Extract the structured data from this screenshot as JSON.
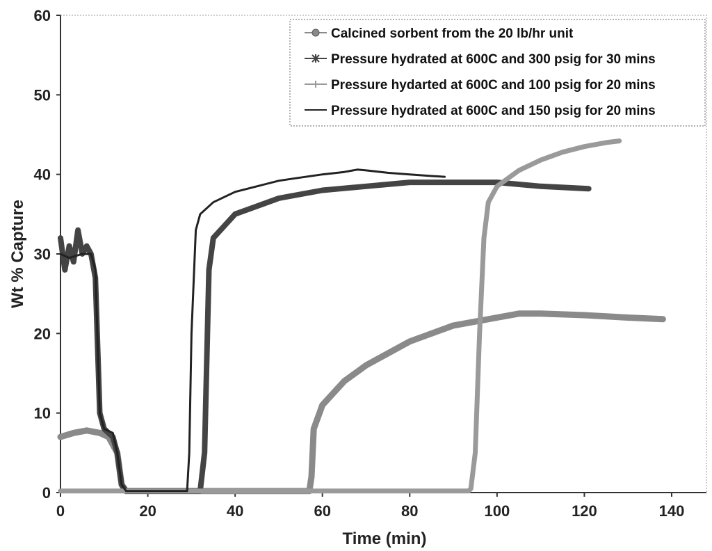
{
  "chart_data": {
    "type": "line",
    "title": "",
    "xlabel": "Time (min)",
    "ylabel": "Wt % Capture",
    "xlim": [
      0,
      140
    ],
    "ylim": [
      0,
      60
    ],
    "x_ticks": [
      "0",
      "20",
      "40",
      "60",
      "80",
      "100",
      "120",
      "140"
    ],
    "y_ticks": [
      "0",
      "10",
      "20",
      "30",
      "40",
      "50",
      "60"
    ],
    "grid": false,
    "legend_position": "top-right",
    "series": [
      {
        "name": "Calcined sorbent from the 20 lb/hr unit",
        "color": "#8a8a8a",
        "marker": "circle",
        "x": [
          0,
          3,
          6,
          9,
          11,
          13,
          14,
          15,
          20,
          30,
          40,
          50,
          57,
          57.5,
          58,
          60,
          65,
          70,
          80,
          90,
          100,
          105,
          110,
          120,
          130,
          138
        ],
        "y": [
          7,
          7.5,
          7.8,
          7.5,
          7,
          5,
          1,
          0.2,
          0.2,
          0.2,
          0.2,
          0.2,
          0.2,
          2,
          8,
          11,
          14,
          16,
          19,
          21,
          22,
          22.5,
          22.5,
          22.3,
          22,
          21.8
        ]
      },
      {
        "name": "Pressure hydrated at 600C and 300 psig for 30 mins",
        "color": "#444444",
        "marker": "star",
        "x": [
          0,
          1,
          2,
          3,
          4,
          5,
          6,
          7,
          8,
          9,
          10,
          11,
          12,
          13,
          14,
          15,
          20,
          25,
          30,
          32,
          33,
          34,
          35,
          40,
          50,
          60,
          70,
          80,
          90,
          100,
          110,
          121
        ],
        "y": [
          32,
          28,
          31,
          29,
          33,
          30,
          31,
          30,
          27,
          10,
          8,
          7.5,
          7,
          5,
          1,
          0.2,
          0.2,
          0.2,
          0.2,
          0.2,
          5,
          28,
          32,
          35,
          37,
          38,
          38.5,
          39,
          39,
          39,
          38.5,
          38.2
        ]
      },
      {
        "name": "Pressure hydarted at 600C and 100 psig for 20 mins",
        "color": "#9a9a9a",
        "marker": "plus",
        "x": [
          0,
          5,
          10,
          15,
          20,
          40,
          60,
          80,
          90,
          93.5,
          94,
          95,
          96,
          97,
          98,
          100,
          105,
          110,
          115,
          120,
          125,
          128
        ],
        "y": [
          0.2,
          0.2,
          0.2,
          0.2,
          0.2,
          0.2,
          0.2,
          0.2,
          0.2,
          0.2,
          0.5,
          5,
          20,
          32,
          36.5,
          38.5,
          40.5,
          41.8,
          42.8,
          43.5,
          44,
          44.2
        ]
      },
      {
        "name": "Pressure hydrated at 600C and 150 psig for 20 mins",
        "color": "#222222",
        "marker": "none",
        "x": [
          0,
          2,
          5,
          7,
          8,
          9,
          10,
          12,
          13,
          14,
          15,
          20,
          25,
          29,
          29.5,
          30,
          31,
          32,
          35,
          40,
          45,
          50,
          55,
          60,
          65,
          68,
          70,
          75,
          80,
          85,
          88
        ],
        "y": [
          30,
          29.5,
          30,
          30,
          28,
          10,
          8,
          7.5,
          5,
          1,
          0.2,
          0.2,
          0.2,
          0.2,
          5,
          20,
          33,
          35,
          36.5,
          37.8,
          38.5,
          39.2,
          39.6,
          40,
          40.3,
          40.6,
          40.5,
          40.2,
          40,
          39.8,
          39.7
        ]
      }
    ]
  }
}
